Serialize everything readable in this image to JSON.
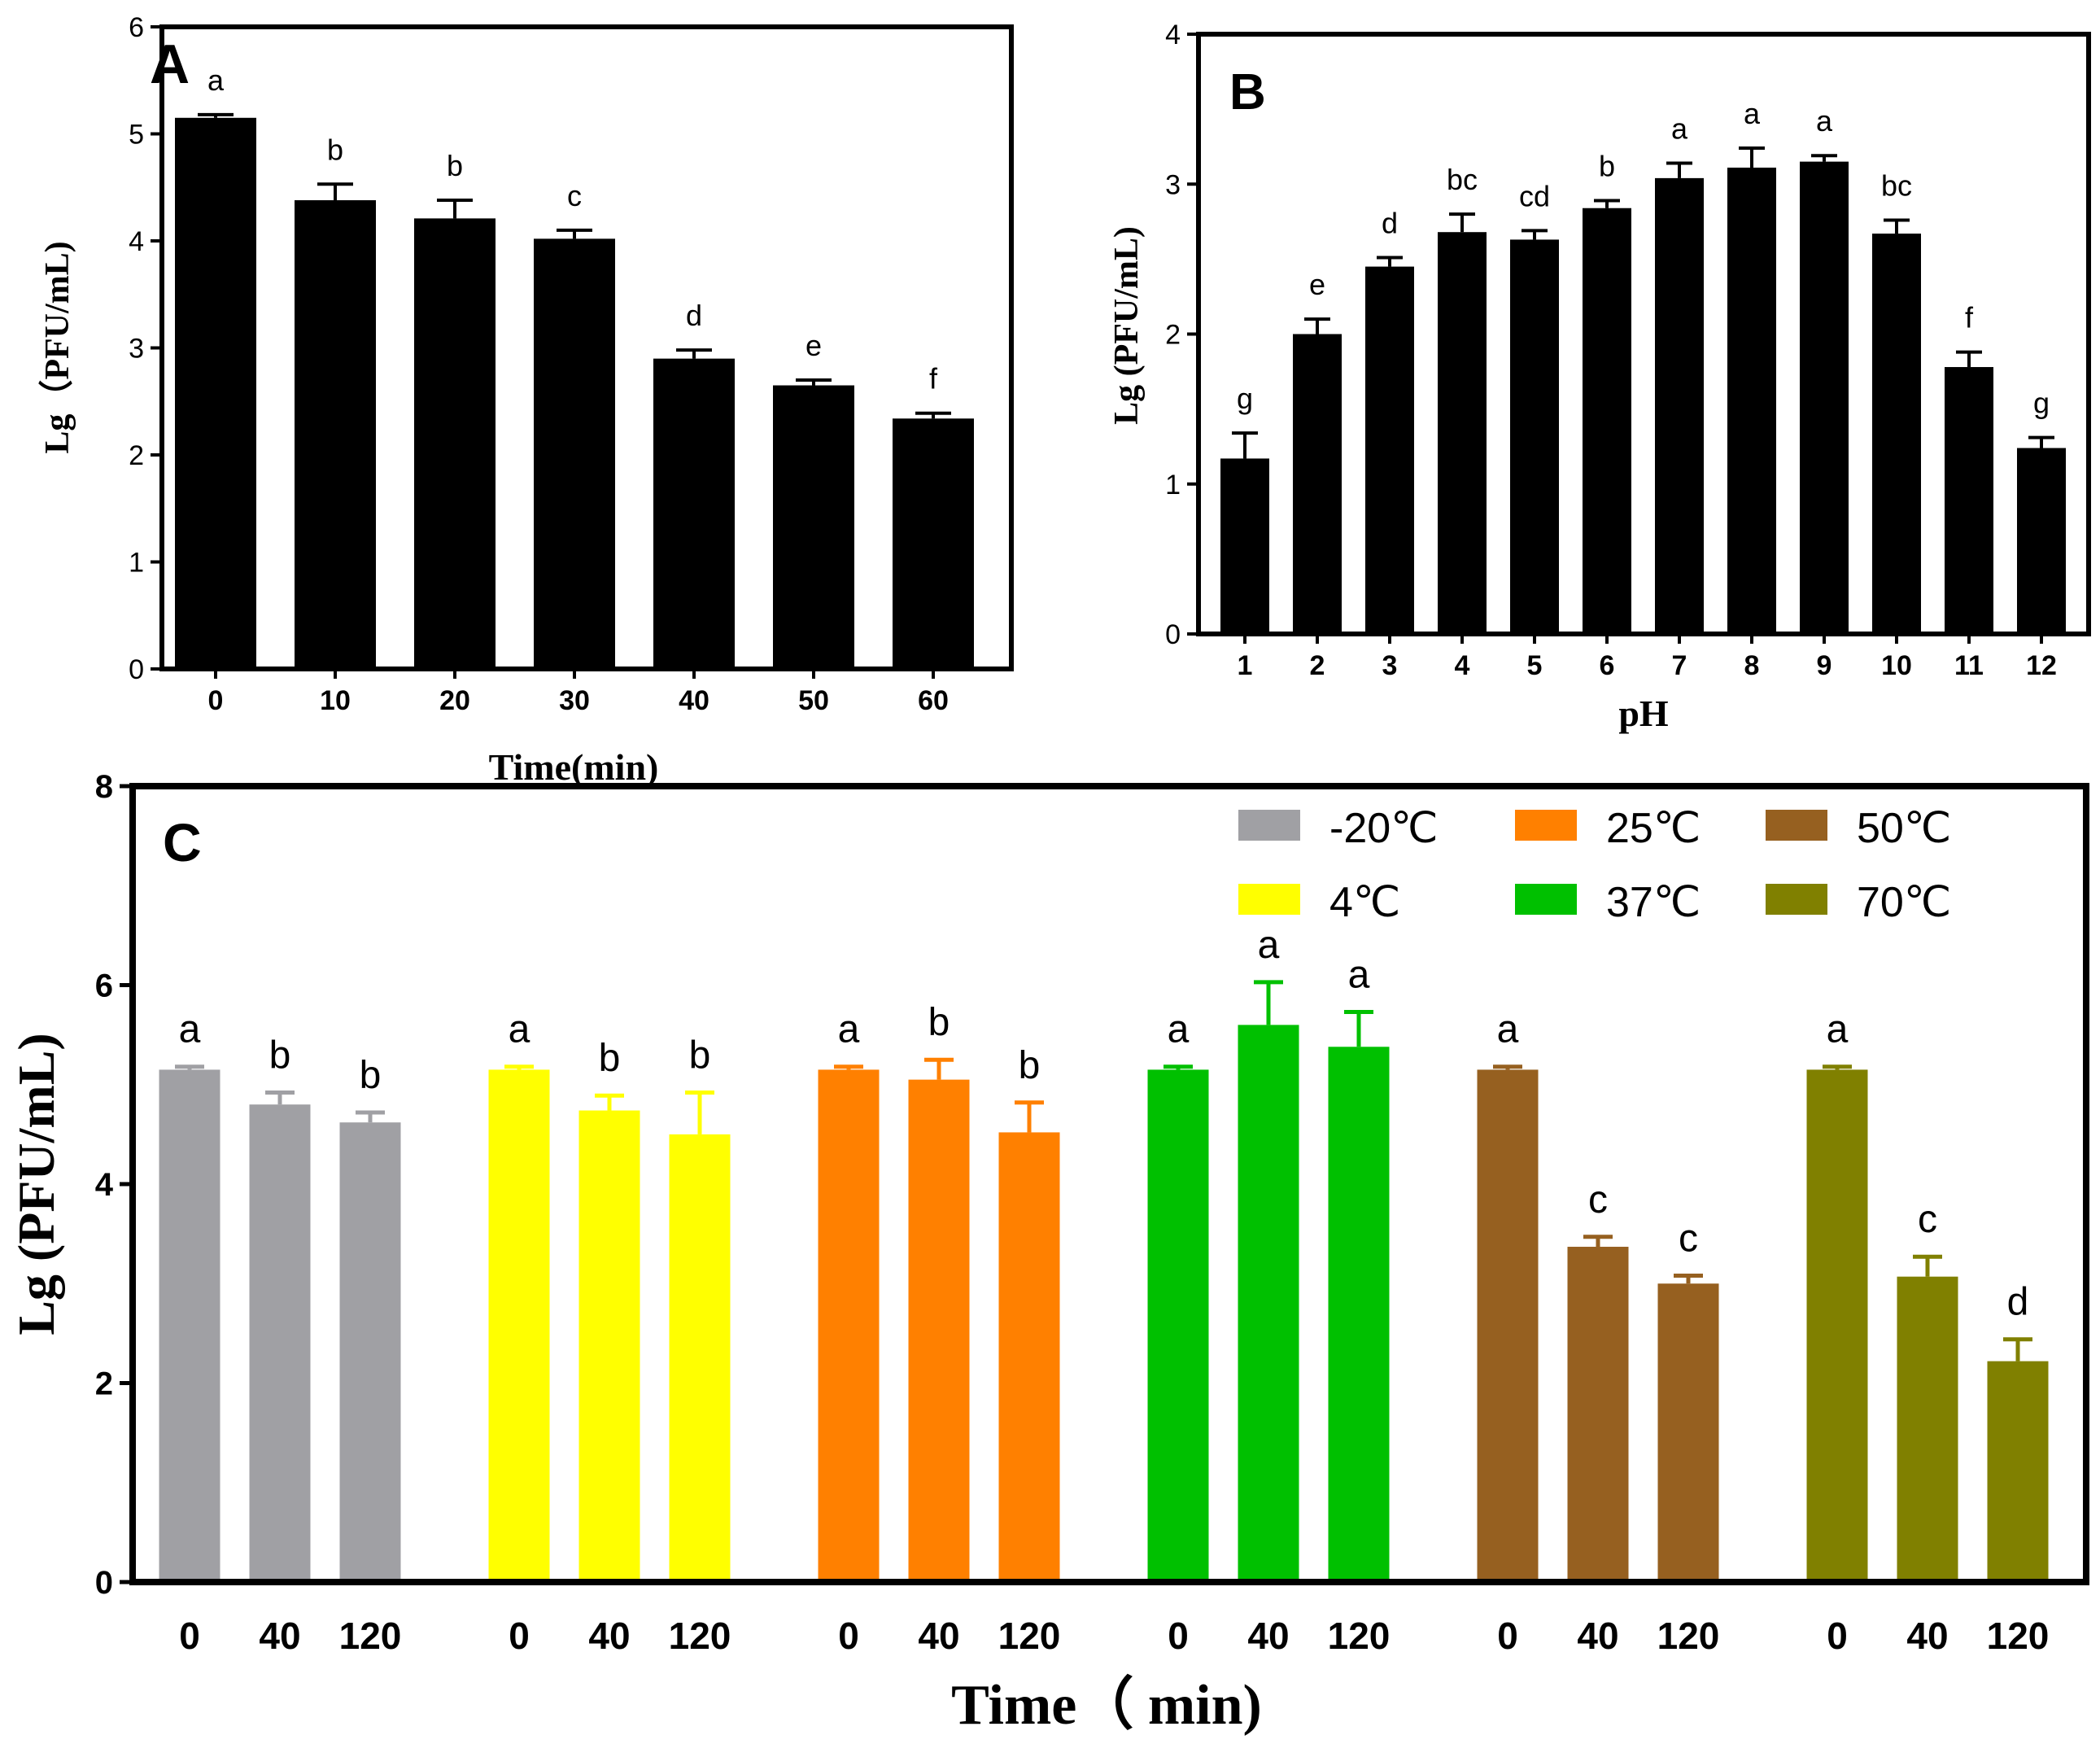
{
  "chart_data": [
    {
      "panel": "A",
      "type": "bar",
      "xlabel": "Time(min)",
      "ylabel": "Lg（PFU/mL)",
      "ylim": [
        0,
        6
      ],
      "yticks": [
        0,
        1,
        2,
        3,
        4,
        5,
        6
      ],
      "categories": [
        "0",
        "10",
        "20",
        "30",
        "40",
        "50",
        "60"
      ],
      "values": [
        5.15,
        4.38,
        4.21,
        4.02,
        2.9,
        2.65,
        2.34
      ],
      "errors": [
        0.03,
        0.15,
        0.17,
        0.08,
        0.08,
        0.05,
        0.05
      ],
      "letters": [
        "a",
        "b",
        "b",
        "c",
        "d",
        "e",
        "f"
      ],
      "bar_color": "#000000"
    },
    {
      "panel": "B",
      "type": "bar",
      "xlabel": "pH",
      "ylabel": "Lg (PFU/mL)",
      "ylim": [
        0,
        4
      ],
      "yticks": [
        0,
        1,
        2,
        3,
        4
      ],
      "categories": [
        "1",
        "2",
        "3",
        "4",
        "5",
        "6",
        "7",
        "8",
        "9",
        "10",
        "11",
        "12"
      ],
      "values": [
        1.17,
        2.0,
        2.45,
        2.68,
        2.63,
        2.84,
        3.04,
        3.11,
        3.15,
        2.67,
        1.78,
        1.24
      ],
      "errors": [
        0.17,
        0.1,
        0.06,
        0.12,
        0.06,
        0.05,
        0.1,
        0.13,
        0.04,
        0.09,
        0.1,
        0.07
      ],
      "letters": [
        "g",
        "e",
        "d",
        "bc",
        "cd",
        "b",
        "a",
        "a",
        "a",
        "bc",
        "f",
        "g"
      ],
      "bar_color": "#000000"
    },
    {
      "panel": "C",
      "type": "bar",
      "xlabel": "Time（ min)",
      "ylabel": "Lg (PFU/mL)",
      "ylim": [
        0,
        8
      ],
      "yticks": [
        0,
        2,
        4,
        6,
        8
      ],
      "categories": [
        "0",
        "40",
        "120"
      ],
      "series": [
        {
          "name": "-20℃",
          "color": "#a0a0a4",
          "values": [
            5.15,
            4.8,
            4.62
          ],
          "errors": [
            0.03,
            0.12,
            0.1
          ],
          "letters": [
            "a",
            "b",
            "b"
          ]
        },
        {
          "name": "4℃",
          "color": "#ffff00",
          "values": [
            5.15,
            4.74,
            4.5
          ],
          "errors": [
            0.03,
            0.15,
            0.42
          ],
          "letters": [
            "a",
            "b",
            "b"
          ]
        },
        {
          "name": "25℃",
          "color": "#ff8000",
          "values": [
            5.15,
            5.05,
            4.52
          ],
          "errors": [
            0.03,
            0.2,
            0.3
          ],
          "letters": [
            "a",
            "b",
            "b"
          ]
        },
        {
          "name": "37℃",
          "color": "#00c000",
          "values": [
            5.15,
            5.6,
            5.38
          ],
          "errors": [
            0.03,
            0.43,
            0.35
          ],
          "letters": [
            "a",
            "a",
            "a"
          ]
        },
        {
          "name": "50℃",
          "color": "#966020",
          "values": [
            5.15,
            3.37,
            3.0
          ],
          "errors": [
            0.03,
            0.1,
            0.08
          ],
          "letters": [
            "a",
            "c",
            "c"
          ]
        },
        {
          "name": "70℃",
          "color": "#808000",
          "values": [
            5.15,
            3.07,
            2.22
          ],
          "errors": [
            0.03,
            0.2,
            0.22
          ],
          "letters": [
            "a",
            "c",
            "d"
          ]
        }
      ]
    }
  ]
}
